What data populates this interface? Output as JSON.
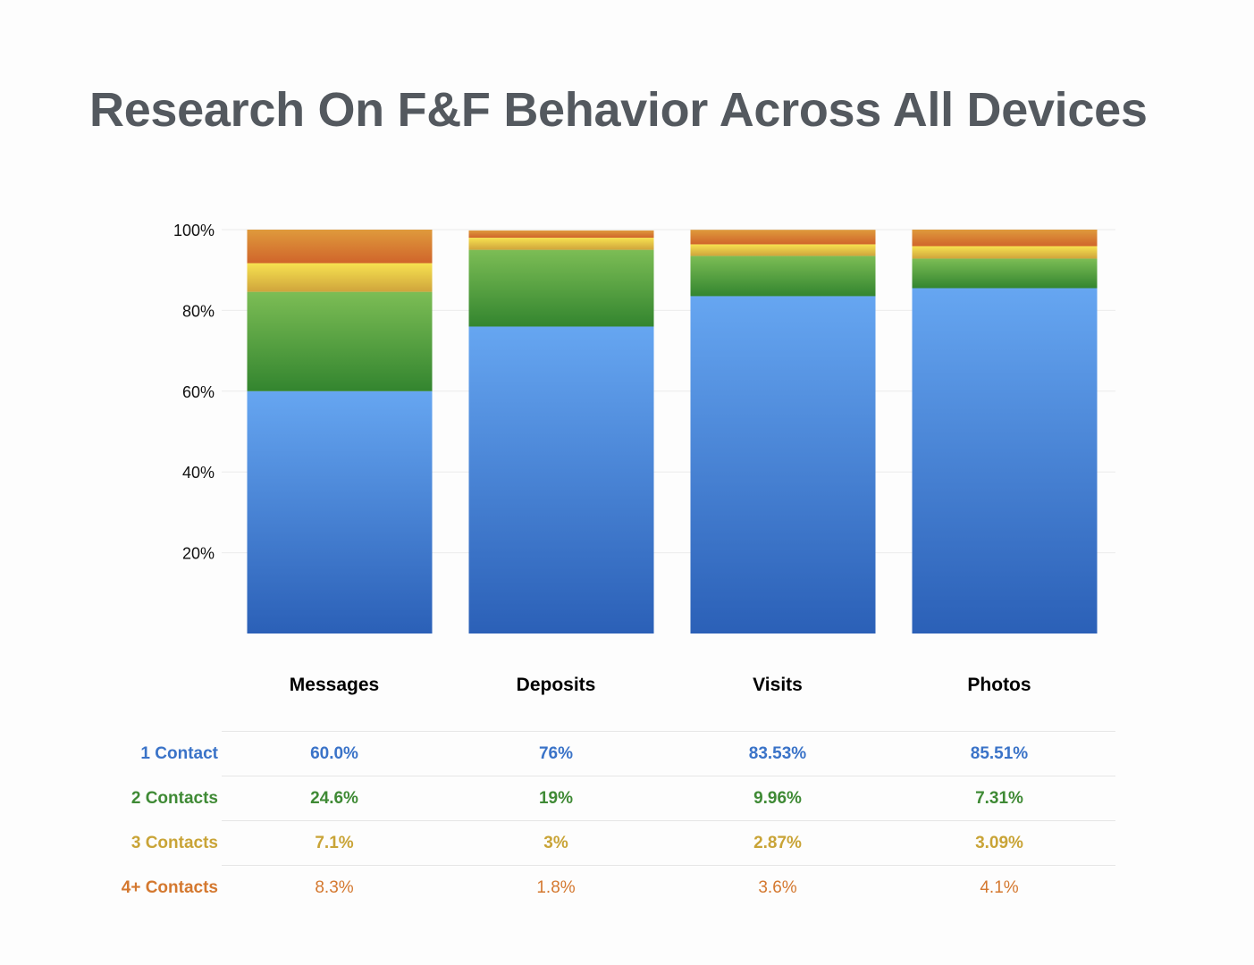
{
  "title": "Research On F&F Behavior Across All Devices",
  "chart_data": {
    "type": "bar",
    "stacked": true,
    "categories": [
      "Messages",
      "Deposits",
      "Visits",
      "Photos"
    ],
    "series": [
      {
        "name": "1 Contact",
        "values": [
          60.0,
          76,
          83.53,
          85.51
        ],
        "labels": [
          "60.0%",
          "76%",
          "83.53%",
          "85.51%"
        ],
        "color": "#3a73c8"
      },
      {
        "name": "2 Contacts",
        "values": [
          24.6,
          19,
          9.96,
          7.31
        ],
        "labels": [
          "24.6%",
          "19%",
          "9.96%",
          "7.31%"
        ],
        "color": "#3f8a35"
      },
      {
        "name": "3 Contacts",
        "values": [
          7.1,
          3,
          2.87,
          3.09
        ],
        "labels": [
          "7.1%",
          "3%",
          "2.87%",
          "3.09%"
        ],
        "color": "#c9a437"
      },
      {
        "name": "4+ Contacts",
        "values": [
          8.3,
          1.8,
          3.6,
          4.1
        ],
        "labels": [
          "8.3%",
          "1.8%",
          "3.6%",
          "4.1%"
        ],
        "color": "#d4782f"
      }
    ],
    "ylim": [
      0,
      100
    ],
    "yticks": [
      20,
      40,
      60,
      80,
      100
    ],
    "ytick_labels": [
      "20%",
      "40%",
      "60%",
      "80%",
      "100%"
    ],
    "grid": true,
    "legend": "table-below"
  }
}
